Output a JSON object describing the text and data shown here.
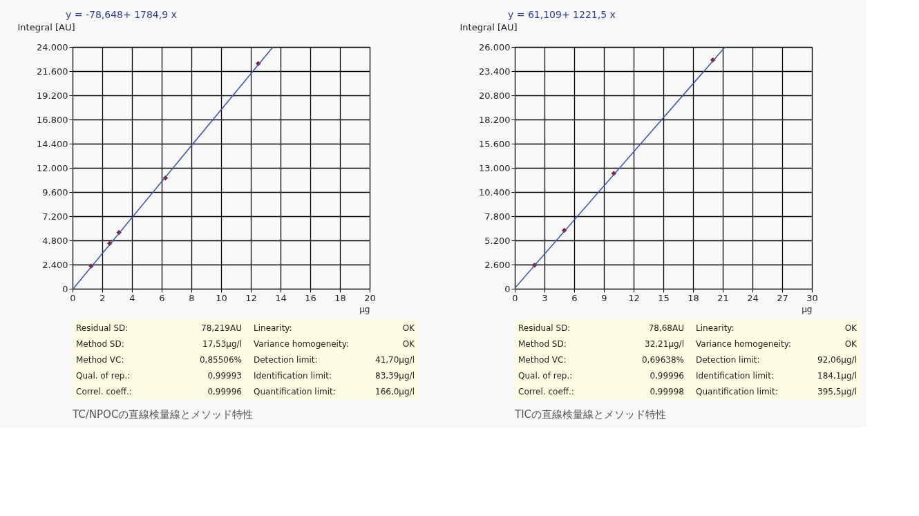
{
  "chart_data": [
    {
      "type": "scatter",
      "title": "y = -78,648+ 1784,9 x",
      "xlabel": "µg",
      "ylabel": "Integral [AU]",
      "xlim": [
        0,
        20
      ],
      "xticks": [
        0,
        2,
        4,
        6,
        8,
        10,
        12,
        14,
        16,
        18,
        20
      ],
      "ylim": [
        0,
        24000
      ],
      "yticks": [
        0,
        {
          "value": 2400,
          "label": "2.400"
        },
        {
          "value": 4800,
          "label": "4.800"
        },
        {
          "value": 7200,
          "label": "7.200"
        },
        {
          "value": 9600,
          "label": "9.600"
        },
        {
          "value": 12000,
          "label": "12.000"
        },
        {
          "value": 14400,
          "label": "14.400"
        },
        {
          "value": 16800,
          "label": "16.800"
        },
        {
          "value": 19200,
          "label": "19.200"
        },
        {
          "value": 21600,
          "label": "21.600"
        },
        {
          "value": 24000,
          "label": "24.000"
        }
      ],
      "grid": true,
      "series": [
        {
          "type": "scatter",
          "marker": "diamond",
          "color": "#a01828",
          "x": [
            1.25,
            2.5,
            3.125,
            6.25,
            12.5
          ],
          "values": [
            2250,
            4500,
            5580,
            11000,
            22350
          ]
        },
        {
          "type": "line",
          "color": "#3a55b4",
          "x": [
            0.044,
            13.49
          ],
          "values": [
            0,
            24000
          ]
        }
      ],
      "annotations": [
        "Residual SD:",
        "78,219AU",
        "Linearity:",
        "OK",
        "Method SD:",
        "17,53µg/l",
        "Variance homogeneity:",
        "OK",
        "Method VC:",
        "0,85506%",
        "Detection limit:",
        "41,70µg/l",
        "Qual. of rep.:",
        "0,99993",
        "Identification limit:",
        "83,39µg/l",
        "Correl. coeff.:",
        "0,99996",
        "Quantification limit:",
        "166,0µg/l",
        "TC/NPOCの直線検量線とメソッド特性"
      ]
    },
    {
      "type": "scatter",
      "title": "y = 61,109+ 1221,5 x",
      "xlabel": "µg",
      "ylabel": "Integral [AU]",
      "xlim": [
        0,
        30
      ],
      "xticks": [
        0,
        3,
        6,
        9,
        12,
        15,
        18,
        21,
        24,
        27,
        30
      ],
      "ylim": [
        0,
        26000
      ],
      "yticks": [
        0,
        {
          "value": 2600,
          "label": "2.600"
        },
        {
          "value": 5200,
          "label": "5.200"
        },
        {
          "value": 7800,
          "label": "7.800"
        },
        {
          "value": 10400,
          "label": "10.400"
        },
        {
          "value": 13000,
          "label": "13.000"
        },
        {
          "value": 15600,
          "label": "15.600"
        },
        {
          "value": 18200,
          "label": "18.200"
        },
        {
          "value": 20800,
          "label": "20.800"
        },
        {
          "value": 23400,
          "label": "23.400"
        },
        {
          "value": 26000,
          "label": "26.000"
        }
      ],
      "grid": true,
      "series": [
        {
          "type": "scatter",
          "marker": "diamond",
          "color": "#a01828",
          "x": [
            2,
            5,
            10,
            20
          ],
          "values": [
            2540,
            6280,
            12400,
            24600
          ]
        },
        {
          "type": "line",
          "color": "#3a55b4",
          "x": [
            0,
            21.235
          ],
          "values": [
            60,
            26000
          ]
        }
      ],
      "annotations": [
        "Residual SD:",
        "78,68AU",
        "Linearity:",
        "OK",
        "Method SD:",
        "32,21µg/l",
        "Variance homogeneity:",
        "OK",
        "Method VC:",
        "0,69638%",
        "Detection limit:",
        "92,06µg/l",
        "Qual. of rep.:",
        "0,99996",
        "Identification limit:",
        "184,1µg/l",
        "Correl. coeff.:",
        "0,99998",
        "Quantification limit:",
        "395,5µg/l",
        "TICの直線検量線とメソッド特性"
      ]
    }
  ]
}
